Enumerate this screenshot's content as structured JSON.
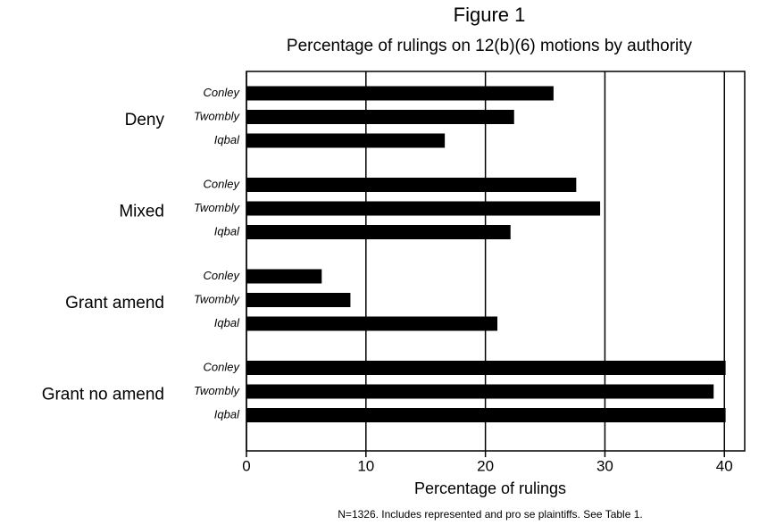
{
  "chart_data": {
    "type": "hbar",
    "title": "Figure 1",
    "subtitle": "Percentage of rulings on 12(b)(6) motions by authority",
    "x_label": "Percentage of rulings",
    "note": "N=1326.  Includes represented and pro se plaintiffs.  See Table 1.",
    "categories": [
      "Deny",
      "Mixed",
      "Grant amend",
      "Grant no amend"
    ],
    "series": [
      {
        "name": "Conley",
        "color": "#000000",
        "values": [
          25.7,
          27.6,
          6.3,
          40.1
        ]
      },
      {
        "name": "Twombly",
        "color": "#000000",
        "values": [
          22.4,
          29.6,
          8.7,
          39.1
        ]
      },
      {
        "name": "Iqbal",
        "color": "#000000",
        "values": [
          16.6,
          22.1,
          21.0,
          40.1
        ]
      }
    ],
    "xlim": [
      0,
      41.7
    ],
    "xticks": [
      0,
      10,
      20,
      30,
      40
    ],
    "grid": true
  }
}
